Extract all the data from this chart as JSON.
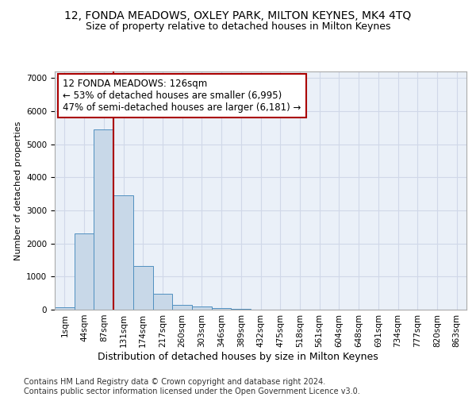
{
  "title1": "12, FONDA MEADOWS, OXLEY PARK, MILTON KEYNES, MK4 4TQ",
  "title2": "Size of property relative to detached houses in Milton Keynes",
  "xlabel": "Distribution of detached houses by size in Milton Keynes",
  "ylabel": "Number of detached properties",
  "bin_labels": [
    "1sqm",
    "44sqm",
    "87sqm",
    "131sqm",
    "174sqm",
    "217sqm",
    "260sqm",
    "303sqm",
    "346sqm",
    "389sqm",
    "432sqm",
    "475sqm",
    "518sqm",
    "561sqm",
    "604sqm",
    "648sqm",
    "691sqm",
    "734sqm",
    "777sqm",
    "820sqm",
    "863sqm"
  ],
  "bar_values": [
    75,
    2300,
    5450,
    3450,
    1320,
    480,
    155,
    90,
    55,
    20,
    8,
    5,
    3,
    2,
    1,
    1,
    0,
    0,
    0,
    0,
    0
  ],
  "bar_color": "#c8d8e8",
  "bar_edge_color": "#5090c0",
  "grid_color": "#d0d8e8",
  "background_color": "#eaf0f8",
  "vline_color": "#aa0000",
  "vline_x_index": 2.5,
  "annotation_text": "12 FONDA MEADOWS: 126sqm\n← 53% of detached houses are smaller (6,995)\n47% of semi-detached houses are larger (6,181) →",
  "annotation_box_color": "#aa0000",
  "ylim": [
    0,
    7200
  ],
  "footer": "Contains HM Land Registry data © Crown copyright and database right 2024.\nContains public sector information licensed under the Open Government Licence v3.0.",
  "title1_fontsize": 10,
  "title2_fontsize": 9,
  "xlabel_fontsize": 9,
  "ylabel_fontsize": 8,
  "tick_fontsize": 7.5,
  "annotation_fontsize": 8.5,
  "footer_fontsize": 7
}
